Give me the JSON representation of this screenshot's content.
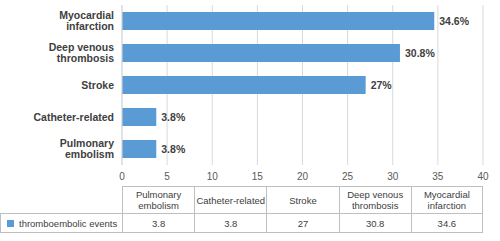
{
  "chart_data": {
    "type": "bar",
    "orientation": "horizontal",
    "categories": [
      "Pulmonary embolism",
      "Catheter-related",
      "Stroke",
      "Deep venous thrombosis",
      "Myocardial infarction"
    ],
    "series": [
      {
        "name": "thromboembolic events",
        "color": "#5b9bd5",
        "values": [
          3.8,
          3.8,
          27,
          30.8,
          34.6
        ],
        "value_labels": [
          "3.8%",
          "3.8%",
          "27%",
          "30.8%",
          "34.6%"
        ]
      }
    ],
    "xlim": [
      0,
      40
    ],
    "xticks": [
      0,
      5,
      10,
      15,
      20,
      25,
      30,
      35,
      40
    ],
    "grid": true,
    "data_labels": true
  }
}
